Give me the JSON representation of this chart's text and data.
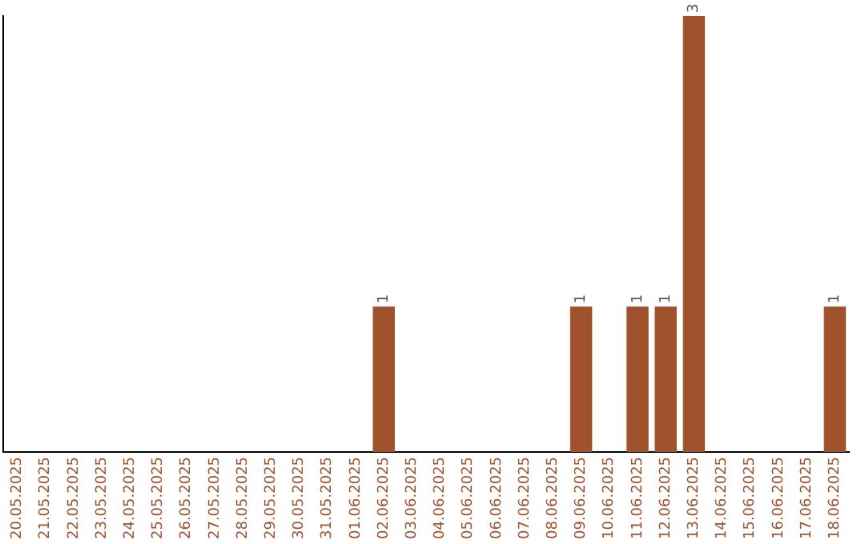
{
  "chart_data": {
    "type": "bar",
    "categories": [
      "20.05.2025",
      "21.05.2025",
      "22.05.2025",
      "23.05.2025",
      "24.05.2025",
      "25.05.2025",
      "26.05.2025",
      "27.05.2025",
      "28.05.2025",
      "29.05.2025",
      "30.05.2025",
      "31.05.2025",
      "01.06.2025",
      "02.06.2025",
      "03.06.2025",
      "04.06.2025",
      "05.06.2025",
      "06.06.2025",
      "07.06.2025",
      "08.06.2025",
      "09.06.2025",
      "10.06.2025",
      "11.06.2025",
      "12.06.2025",
      "13.06.2025",
      "14.06.2025",
      "15.06.2025",
      "16.06.2025",
      "17.06.2025",
      "18.06.2025"
    ],
    "values": [
      null,
      null,
      null,
      null,
      null,
      null,
      null,
      null,
      null,
      null,
      null,
      null,
      null,
      1,
      null,
      null,
      null,
      null,
      null,
      null,
      1,
      null,
      1,
      1,
      3,
      null,
      null,
      null,
      null,
      1
    ],
    "data_labels": true,
    "color": "#a0522d",
    "grid": false,
    "tick_labels": "x"
  }
}
